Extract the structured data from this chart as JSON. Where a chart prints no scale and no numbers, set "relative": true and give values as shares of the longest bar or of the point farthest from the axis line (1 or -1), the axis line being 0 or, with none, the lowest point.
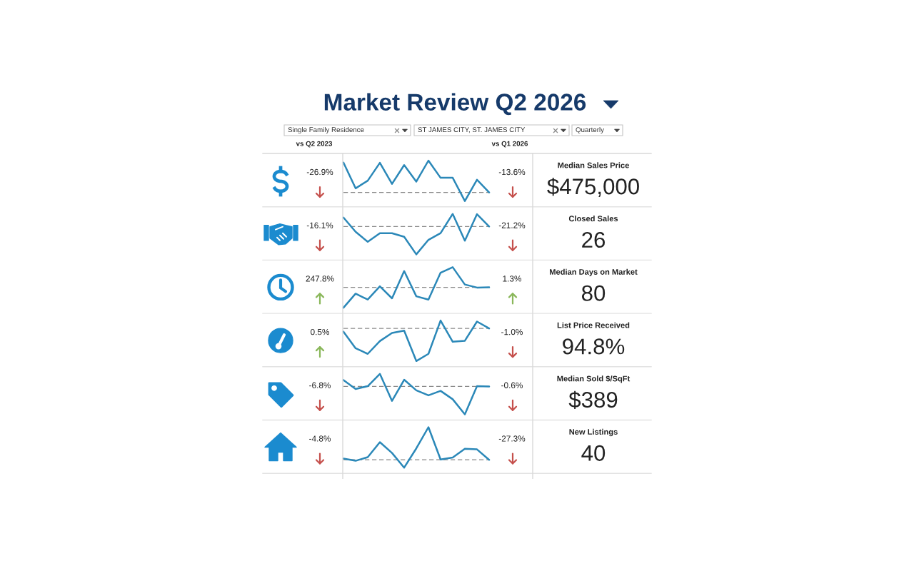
{
  "chart_data": [
    {
      "type": "other",
      "title": "Market Review Q2 2026",
      "annotations": [
        "Single Family Residence",
        "ST JAMES CITY, ST. JAMES CITY",
        "Quarterly",
        "vs Q2 2023",
        "vs Q1 2026"
      ]
    },
    {
      "type": "line",
      "relative": true,
      "categories": [
        null,
        null,
        null,
        null,
        null,
        null,
        null,
        null,
        null,
        null,
        null,
        null,
        null
      ],
      "values": [
        0.94,
        0.13,
        0.37,
        0.93,
        0.27,
        0.86,
        0.34,
        1.0,
        0.46,
        0.46,
        -0.27,
        0.4,
        0.0
      ],
      "color": "#2b88b8",
      "ref_lines": [
        {
          "axis": "y",
          "value": 0,
          "color": "#8a8a8a",
          "line_style": "dashed"
        }
      ],
      "annotations": [
        "-26.9%",
        "-13.6%",
        "Median Sales Price",
        "$475,000"
      ]
    },
    {
      "type": "line",
      "relative": true,
      "categories": [
        null,
        null,
        null,
        null,
        null,
        null,
        null,
        null,
        null,
        null,
        null,
        null,
        null
      ],
      "values": [
        0.32,
        -0.19,
        -0.55,
        -0.24,
        -0.24,
        -0.37,
        -1.0,
        -0.48,
        -0.24,
        0.45,
        -0.51,
        0.44,
        0.0
      ],
      "color": "#2b88b8",
      "ref_lines": [
        {
          "axis": "y",
          "value": 0,
          "color": "#8a8a8a",
          "line_style": "dashed"
        }
      ],
      "annotations": [
        "-16.1%",
        "-21.2%",
        "Closed Sales",
        "26"
      ]
    },
    {
      "type": "line",
      "relative": true,
      "categories": [
        null,
        null,
        null,
        null,
        null,
        null,
        null,
        null,
        null,
        null,
        null,
        null,
        null
      ],
      "values": [
        -1.0,
        -0.31,
        -0.6,
        0.05,
        -0.54,
        0.8,
        -0.44,
        -0.6,
        0.72,
        0.99,
        0.14,
        -0.01,
        0.0
      ],
      "color": "#2b88b8",
      "ref_lines": [
        {
          "axis": "y",
          "value": 0,
          "color": "#8a8a8a",
          "line_style": "dashed"
        }
      ],
      "annotations": [
        "247.8%",
        "1.3%",
        "Median Days on Market",
        "80"
      ]
    },
    {
      "type": "line",
      "relative": true,
      "categories": [
        null,
        null,
        null,
        null,
        null,
        null,
        null,
        null,
        null,
        null,
        null,
        null,
        null
      ],
      "values": [
        -0.1,
        -0.61,
        -0.78,
        -0.39,
        -0.14,
        -0.07,
        -1.0,
        -0.78,
        0.24,
        -0.41,
        -0.38,
        0.21,
        0.0
      ],
      "color": "#2b88b8",
      "ref_lines": [
        {
          "axis": "y",
          "value": 0,
          "color": "#8a8a8a",
          "line_style": "dashed"
        }
      ],
      "annotations": [
        "0.5%",
        "-1.0%",
        "List Price Received",
        "94.8%"
      ]
    },
    {
      "type": "line",
      "relative": true,
      "categories": [
        null,
        null,
        null,
        null,
        null,
        null,
        null,
        null,
        null,
        null,
        null,
        null,
        null
      ],
      "values": [
        0.23,
        -0.09,
        0.01,
        0.45,
        -0.52,
        0.24,
        -0.14,
        -0.32,
        -0.16,
        -0.46,
        -1.0,
        0.01,
        0.0
      ],
      "color": "#2b88b8",
      "ref_lines": [
        {
          "axis": "y",
          "value": 0,
          "color": "#8a8a8a",
          "line_style": "dashed"
        }
      ],
      "annotations": [
        "-6.8%",
        "-0.6%",
        "Median Sold $/SqFt",
        "$389"
      ]
    },
    {
      "type": "line",
      "relative": true,
      "categories": [
        null,
        null,
        null,
        null,
        null,
        null,
        null,
        null,
        null,
        null,
        null,
        null,
        null
      ],
      "values": [
        0.04,
        -0.03,
        0.08,
        0.54,
        0.21,
        -0.24,
        0.35,
        1.0,
        0.01,
        0.07,
        0.34,
        0.32,
        0.0
      ],
      "color": "#2b88b8",
      "ref_lines": [
        {
          "axis": "y",
          "value": 0,
          "color": "#8a8a8a",
          "line_style": "dashed"
        }
      ],
      "annotations": [
        "-4.8%",
        "-27.3%",
        "New Listings",
        "40"
      ]
    }
  ]
}
